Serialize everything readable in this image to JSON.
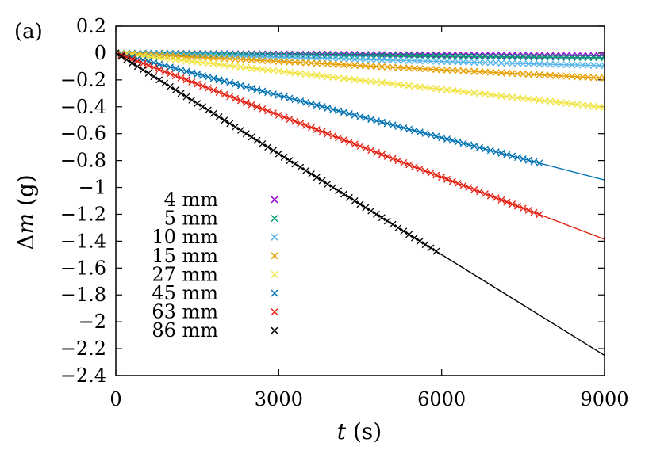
{
  "panel_label": "(a)",
  "chart_data": {
    "type": "scatter",
    "title": "",
    "xlabel_var": "t",
    "xlabel_unit": "(s)",
    "ylabel_prefix": "Δ",
    "ylabel_var": "m",
    "ylabel_unit": "(g)",
    "xlim": [
      0,
      9000
    ],
    "ylim": [
      -2.4,
      0.2
    ],
    "xticks": [
      0,
      3000,
      6000,
      9000
    ],
    "xtick_labels": [
      "0",
      "3000",
      "6000",
      "9000"
    ],
    "yticks": [
      0.2,
      0,
      -0.2,
      -0.4,
      -0.6,
      -0.8,
      -1,
      -1.2,
      -1.4,
      -1.6,
      -1.8,
      -2,
      -2.2,
      -2.4
    ],
    "ytick_labels": [
      "0.2",
      "0",
      "−0.2",
      "−0.4",
      "−0.6",
      "−0.8",
      "−1",
      "−1.2",
      "−1.4",
      "−1.6",
      "−1.8",
      "−2",
      "−2.2",
      "−2.4"
    ],
    "grid": false,
    "legend_position": "bottom-left",
    "series": [
      {
        "name": "4 mm",
        "color": "#9400d3",
        "slope_g_per_s": -2.2e-06,
        "x_end": 9000,
        "fit_line": true
      },
      {
        "name": "5 mm",
        "color": "#009e73",
        "slope_g_per_s": -3.9e-06,
        "x_end": 9000,
        "fit_line": true
      },
      {
        "name": "10 mm",
        "color": "#56b4e9",
        "slope_g_per_s": -1.05e-05,
        "x_end": 9000,
        "fit_line": true
      },
      {
        "name": "15 mm",
        "color": "#e69f00",
        "slope_g_per_s": -2.08e-05,
        "x_end": 9000,
        "fit_line": true
      },
      {
        "name": "27 mm",
        "color": "#f0e442",
        "slope_g_per_s": -4.5e-05,
        "x_end": 9000,
        "fit_line": true
      },
      {
        "name": "45 mm",
        "color": "#0072b2",
        "slope_g_per_s": -0.000105,
        "x_end": 7800,
        "fit_line": true
      },
      {
        "name": "63 mm",
        "color": "#e51e10",
        "slope_g_per_s": -0.000154,
        "x_end": 7800,
        "fit_line": true
      },
      {
        "name": "86 mm",
        "color": "#000000",
        "slope_g_per_s": -0.00025,
        "x_end": 5900,
        "fit_line": true
      }
    ]
  }
}
